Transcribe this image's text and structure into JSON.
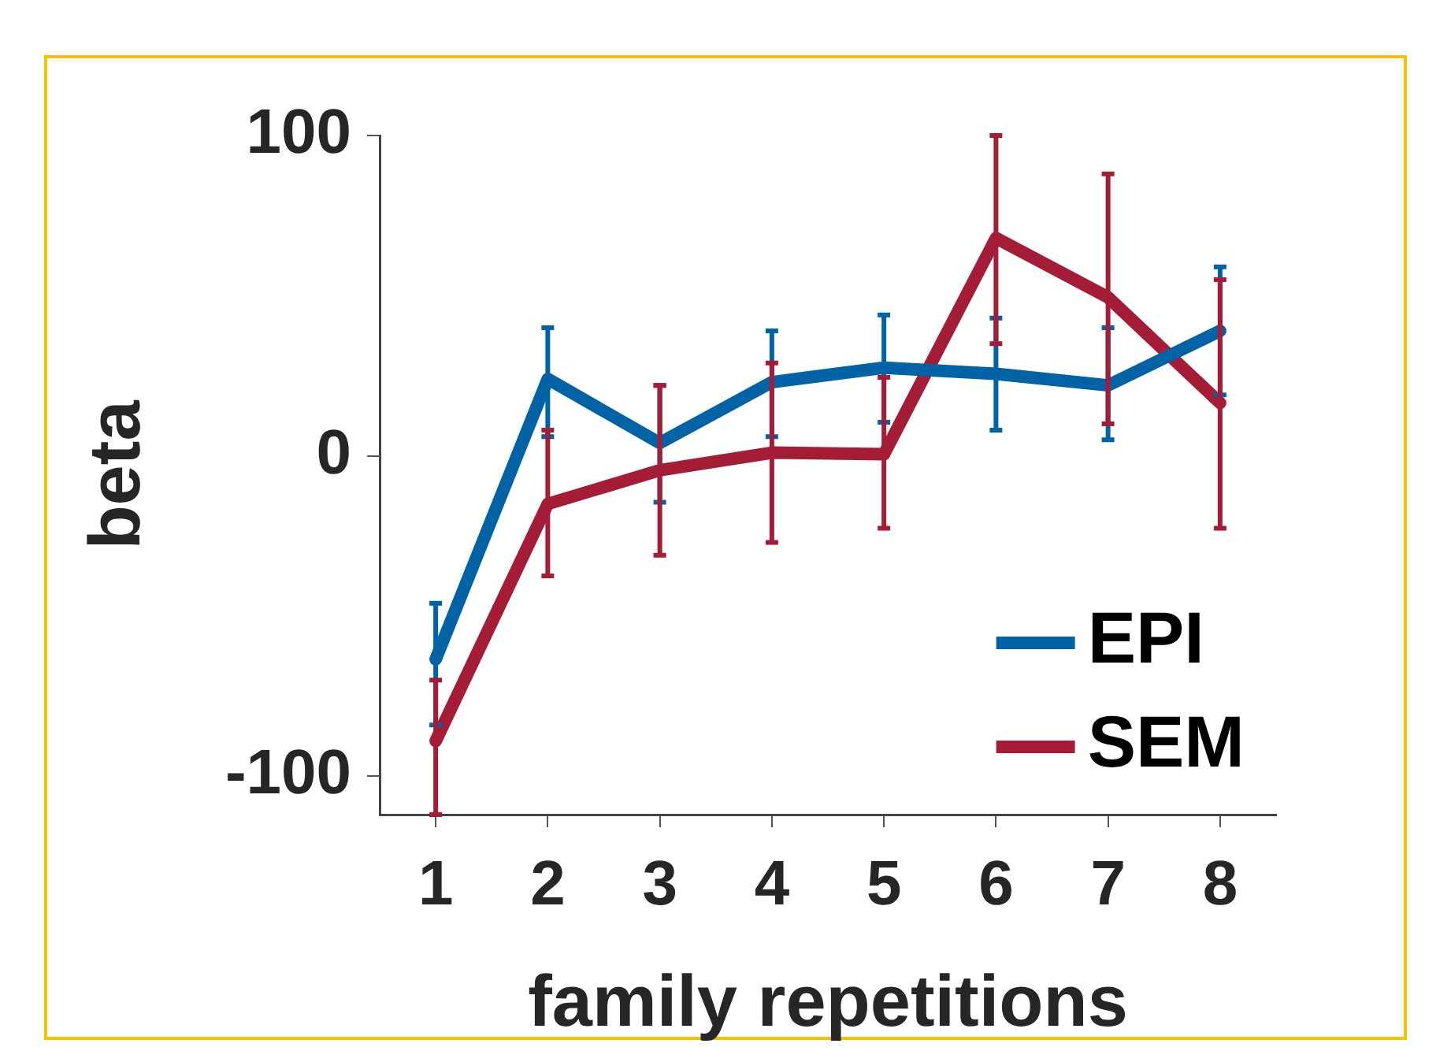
{
  "chart_data": {
    "type": "line",
    "xlabel": "family repetitions",
    "ylabel": "beta",
    "x": [
      1,
      2,
      3,
      4,
      5,
      6,
      7,
      8
    ],
    "xlim": [
      0.5,
      8.5
    ],
    "xticks": [
      1,
      2,
      3,
      4,
      5,
      6,
      7,
      8
    ],
    "ylim": [
      -112,
      100
    ],
    "yticks": [
      -100,
      0,
      100
    ],
    "legend": "bottom right",
    "marker": "none",
    "line_style": "solid",
    "series": [
      {
        "name": "EPI",
        "color": "#0063a6",
        "values": [
          -63.5,
          24,
          4,
          23,
          27.5,
          25.6,
          22,
          39
        ],
        "errors": [
          [
            -84,
            -46
          ],
          [
            6,
            40
          ],
          [
            -14.5,
            22
          ],
          [
            6,
            39
          ],
          [
            10.5,
            44
          ],
          [
            8,
            43
          ],
          [
            5,
            40
          ],
          [
            19,
            59
          ]
        ]
      },
      {
        "name": "SEM",
        "color": "#a51c36",
        "values": [
          -89,
          -15,
          -4.5,
          1,
          0.5,
          68,
          49.5,
          16.5
        ],
        "errors": [
          [
            -112,
            -70
          ],
          [
            -37.5,
            8
          ],
          [
            -31,
            22
          ],
          [
            -27,
            29
          ],
          [
            -22.6,
            24.5
          ],
          [
            35,
            100
          ],
          [
            10,
            88
          ],
          [
            -22.6,
            55
          ]
        ]
      }
    ]
  }
}
